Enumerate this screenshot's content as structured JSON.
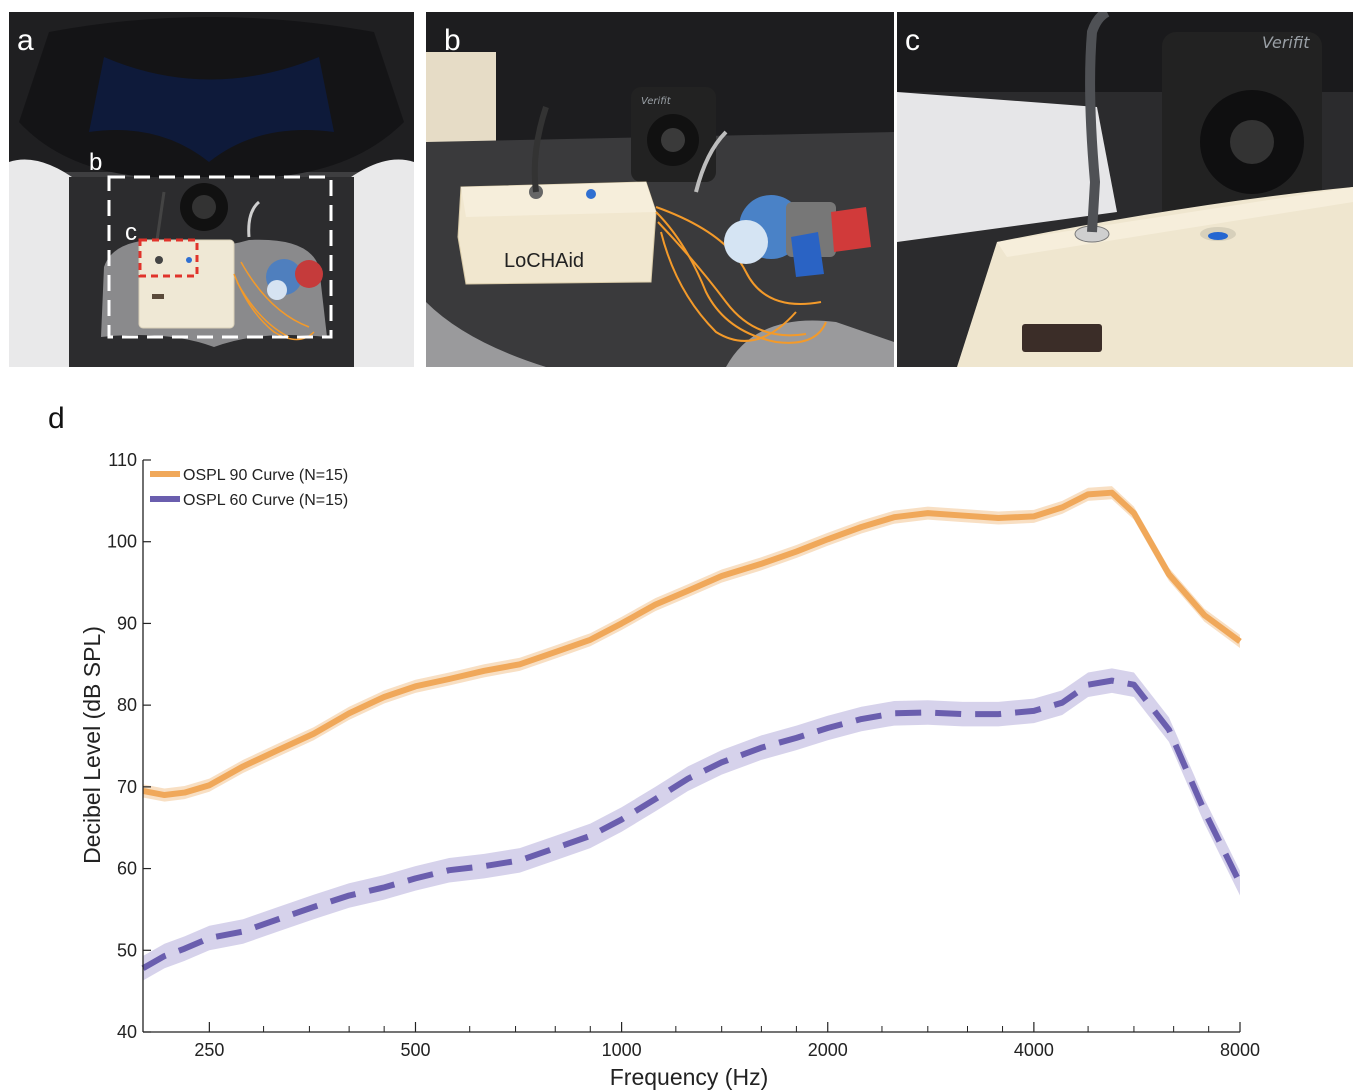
{
  "panels": {
    "a": {
      "letter": "a",
      "callout_b": "b",
      "callout_c": "c"
    },
    "b": {
      "letter": "b",
      "device_label": "LoCHAid",
      "brand": "Verifit"
    },
    "c": {
      "letter": "c",
      "brand": "Verifit"
    },
    "d": {
      "letter": "d"
    }
  },
  "colors": {
    "orange": "#f0a85a",
    "orange_band": "#f7d9b8",
    "purple": "#6a5eae",
    "purple_band": "#cfcae8"
  },
  "chart_data": {
    "type": "line",
    "xlabel": "Frequency (Hz)",
    "ylabel": "Decibel Level (dB SPL)",
    "x_scale": "log2",
    "xlim": [
      200,
      8000
    ],
    "ylim": [
      40,
      110
    ],
    "xticks": [
      250,
      500,
      1000,
      2000,
      4000,
      8000
    ],
    "xtick_labels": [
      "250",
      "500",
      "1000",
      "2000",
      "4000",
      "8000"
    ],
    "yticks": [
      40,
      50,
      60,
      70,
      80,
      90,
      100,
      110
    ],
    "ytick_labels": [
      "40",
      "50",
      "60",
      "70",
      "80",
      "90",
      "100",
      "110"
    ],
    "legend_position": "top-left",
    "grid": false,
    "x": [
      200,
      215,
      230,
      250,
      280,
      315,
      355,
      400,
      450,
      500,
      560,
      630,
      710,
      800,
      900,
      1000,
      1120,
      1250,
      1400,
      1600,
      1800,
      2000,
      2240,
      2500,
      2800,
      3150,
      3550,
      4000,
      4400,
      4800,
      5200,
      5600,
      6300,
      7100,
      8000
    ],
    "series": [
      {
        "name": "OSPL 90 Curve (N=15)",
        "style": "solid",
        "band": 0.8,
        "values": [
          69.5,
          69.0,
          69.3,
          70.2,
          72.5,
          74.5,
          76.5,
          79.0,
          81.0,
          82.3,
          83.2,
          84.2,
          85.0,
          86.5,
          88.0,
          90.0,
          92.3,
          94.0,
          95.8,
          97.3,
          98.8,
          100.3,
          101.8,
          103.0,
          103.5,
          103.2,
          102.9,
          103.1,
          104.2,
          105.8,
          106.0,
          103.5,
          96.0,
          91.0,
          87.8
        ]
      },
      {
        "name": "OSPL 60 Curve (N=15)",
        "style": "dashed",
        "band": 1.5,
        "values": [
          47.8,
          49.3,
          50.2,
          51.5,
          52.3,
          53.8,
          55.3,
          56.7,
          57.7,
          58.8,
          59.8,
          60.3,
          61.0,
          62.5,
          64.0,
          66.0,
          68.5,
          71.0,
          73.0,
          74.8,
          76.0,
          77.2,
          78.3,
          79.0,
          79.1,
          78.9,
          78.9,
          79.3,
          80.3,
          82.5,
          83.0,
          82.5,
          77.0,
          67.0,
          58.2
        ]
      }
    ]
  }
}
